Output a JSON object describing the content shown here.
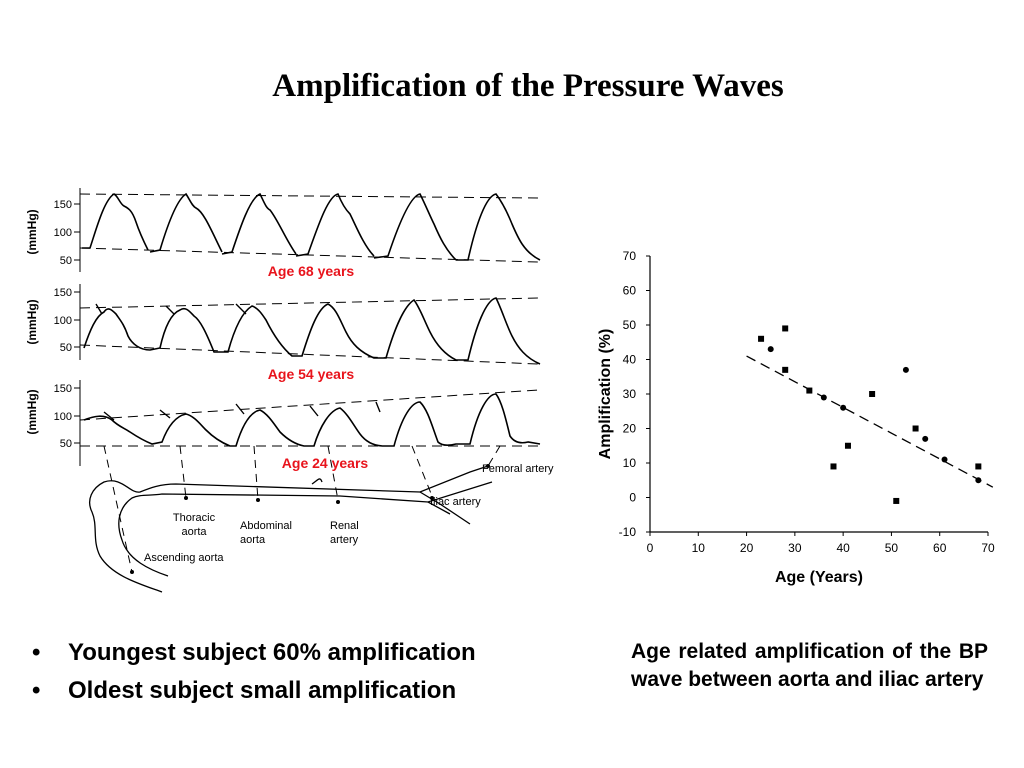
{
  "slide": {
    "title": "Amplification of the Pressure Waves",
    "bullets": [
      "Youngest subject 60% amplification",
      "Oldest subject small amplification"
    ],
    "bullet_symbol": "•",
    "caption": "Age related amplification of the BP wave between aorta and iliac artery"
  },
  "waves_figure": {
    "unit_label": "(mmHg)",
    "y_ticks": [
      "150",
      "100",
      "50"
    ],
    "age_labels": [
      "Age 68 years",
      "Age 54 years",
      "Age 24 years"
    ],
    "age_label_color": "#e8141c",
    "site_labels": {
      "femoral": "Femoral artery",
      "iliac": "Iliac artery",
      "thoracic": [
        "Thoracic",
        "aorta"
      ],
      "abdominal": [
        "Abdominal",
        "aorta"
      ],
      "renal": [
        "Renal",
        "artery"
      ],
      "ascending": "Ascending aorta"
    }
  },
  "chart_data": {
    "type": "scatter",
    "title": "",
    "xlabel": "Age (Years)",
    "ylabel": "Amplification (%)",
    "xlim": [
      0,
      70
    ],
    "ylim": [
      -10,
      70
    ],
    "x_ticks": [
      0,
      10,
      20,
      30,
      40,
      50,
      60,
      70
    ],
    "y_ticks": [
      70,
      60,
      50,
      40,
      30,
      20,
      10,
      0,
      -10
    ],
    "grid": false,
    "points": [
      {
        "x": 23,
        "y": 46,
        "marker": "square"
      },
      {
        "x": 25,
        "y": 43,
        "marker": "circle"
      },
      {
        "x": 28,
        "y": 49,
        "marker": "square"
      },
      {
        "x": 28,
        "y": 37,
        "marker": "square"
      },
      {
        "x": 33,
        "y": 31,
        "marker": "square"
      },
      {
        "x": 36,
        "y": 29,
        "marker": "circle"
      },
      {
        "x": 38,
        "y": 9,
        "marker": "square"
      },
      {
        "x": 40,
        "y": 26,
        "marker": "circle"
      },
      {
        "x": 41,
        "y": 15,
        "marker": "square"
      },
      {
        "x": 46,
        "y": 30,
        "marker": "square"
      },
      {
        "x": 51,
        "y": -1,
        "marker": "square"
      },
      {
        "x": 53,
        "y": 37,
        "marker": "circle"
      },
      {
        "x": 55,
        "y": 20,
        "marker": "square"
      },
      {
        "x": 57,
        "y": 17,
        "marker": "circle"
      },
      {
        "x": 61,
        "y": 11,
        "marker": "circle"
      },
      {
        "x": 68,
        "y": 9,
        "marker": "square"
      },
      {
        "x": 68,
        "y": 5,
        "marker": "circle"
      }
    ],
    "trendline": {
      "style": "dashed",
      "x": [
        20,
        71
      ],
      "y": [
        41,
        3
      ]
    }
  }
}
